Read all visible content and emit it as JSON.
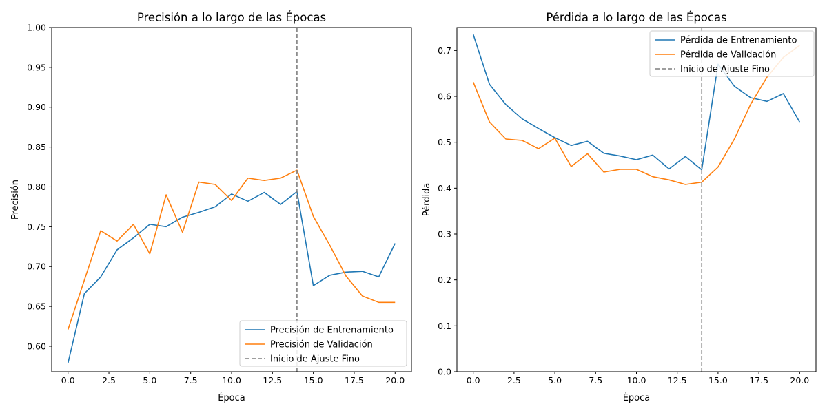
{
  "chart_data": [
    {
      "type": "line",
      "title": "Precisión a lo largo de las Épocas",
      "xlabel": "Época",
      "ylabel": "Precisión",
      "xlim": [
        -1,
        21
      ],
      "ylim": [
        0.568,
        1.0
      ],
      "xticks": [
        0,
        2.5,
        5,
        7.5,
        10,
        12.5,
        15,
        17.5,
        20
      ],
      "xtick_labels": [
        "0.0",
        "2.5",
        "5.0",
        "7.5",
        "10.0",
        "12.5",
        "15.0",
        "17.5",
        "20.0"
      ],
      "yticks": [
        0.6,
        0.65,
        0.7,
        0.75,
        0.8,
        0.85,
        0.9,
        0.95,
        1.0
      ],
      "ytick_labels": [
        "0.60",
        "0.65",
        "0.70",
        "0.75",
        "0.80",
        "0.85",
        "0.90",
        "0.95",
        "1.00"
      ],
      "x": [
        0,
        1,
        2,
        3,
        4,
        5,
        6,
        7,
        8,
        9,
        10,
        11,
        12,
        13,
        14,
        15,
        16,
        17,
        18,
        19,
        20
      ],
      "series": [
        {
          "name": "Precisión de Entrenamiento",
          "color": "#1f77b4",
          "values": [
            0.579,
            0.666,
            0.687,
            0.721,
            0.736,
            0.753,
            0.75,
            0.762,
            0.768,
            0.775,
            0.791,
            0.782,
            0.793,
            0.778,
            0.794,
            0.676,
            0.689,
            0.693,
            0.694,
            0.687,
            0.729
          ]
        },
        {
          "name": "Precisión de Validación",
          "color": "#ff7f0e",
          "values": [
            0.621,
            0.683,
            0.745,
            0.732,
            0.753,
            0.716,
            0.79,
            0.743,
            0.806,
            0.803,
            0.783,
            0.811,
            0.808,
            0.811,
            0.821,
            0.763,
            0.727,
            0.688,
            0.663,
            0.655,
            0.655
          ]
        }
      ],
      "vline": {
        "x": 14,
        "name": "Inicio de Ajuste Fino",
        "color": "#7f7f7f",
        "style": "dashed"
      },
      "legend_position": "lower-right",
      "grid": false
    },
    {
      "type": "line",
      "title": "Pérdida a lo largo de las Épocas",
      "xlabel": "Época",
      "ylabel": "Pérdida",
      "xlim": [
        -1,
        21
      ],
      "ylim": [
        0.0,
        0.75
      ],
      "xticks": [
        0,
        2.5,
        5,
        7.5,
        10,
        12.5,
        15,
        17.5,
        20
      ],
      "xtick_labels": [
        "0.0",
        "2.5",
        "5.0",
        "7.5",
        "10.0",
        "12.5",
        "15.0",
        "17.5",
        "20.0"
      ],
      "yticks": [
        0.0,
        0.1,
        0.2,
        0.3,
        0.4,
        0.5,
        0.6,
        0.7
      ],
      "ytick_labels": [
        "0.0",
        "0.1",
        "0.2",
        "0.3",
        "0.4",
        "0.5",
        "0.6",
        "0.7"
      ],
      "x": [
        0,
        1,
        2,
        3,
        4,
        5,
        6,
        7,
        8,
        9,
        10,
        11,
        12,
        13,
        14,
        15,
        16,
        17,
        18,
        19,
        20
      ],
      "series": [
        {
          "name": "Pérdida de Entrenamiento",
          "color": "#1f77b4",
          "values": [
            0.735,
            0.626,
            0.582,
            0.551,
            0.53,
            0.51,
            0.493,
            0.502,
            0.476,
            0.47,
            0.462,
            0.472,
            0.442,
            0.469,
            0.44,
            0.67,
            0.622,
            0.597,
            0.589,
            0.606,
            0.544
          ]
        },
        {
          "name": "Pérdida de Validación",
          "color": "#ff7f0e",
          "values": [
            0.631,
            0.544,
            0.507,
            0.504,
            0.486,
            0.509,
            0.447,
            0.475,
            0.435,
            0.441,
            0.441,
            0.425,
            0.418,
            0.408,
            0.413,
            0.446,
            0.507,
            0.583,
            0.642,
            0.685,
            0.711
          ]
        }
      ],
      "vline": {
        "x": 14,
        "name": "Inicio de Ajuste Fino",
        "color": "#7f7f7f",
        "style": "dashed"
      },
      "legend_position": "upper-right",
      "grid": false
    }
  ]
}
